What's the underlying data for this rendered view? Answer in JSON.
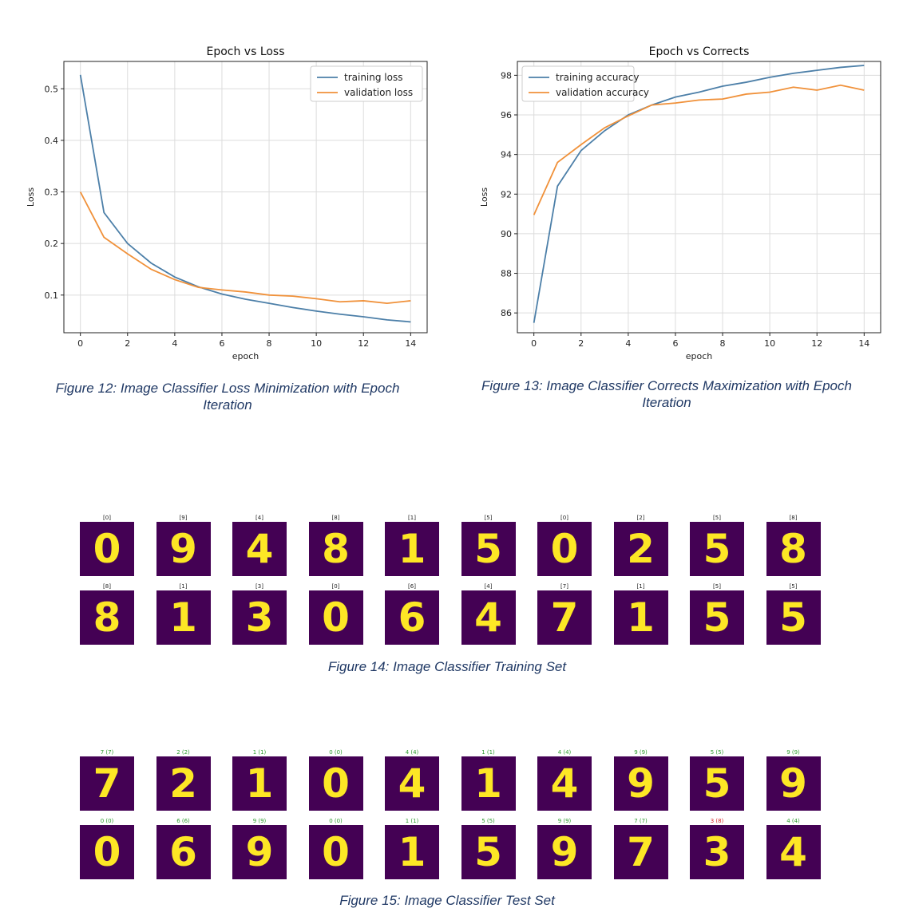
{
  "chart_data": [
    {
      "type": "line",
      "title": "Epoch vs Loss",
      "xlabel": "epoch",
      "ylabel": "Loss",
      "xlim": [
        -0.7,
        14.7
      ],
      "ylim": [
        0.027,
        0.553
      ],
      "xticks": [
        0,
        2,
        4,
        6,
        8,
        10,
        12,
        14
      ],
      "yticks": [
        0.1,
        0.2,
        0.3,
        0.4,
        0.5
      ],
      "ytick_labels": [
        "0.1",
        "0.2",
        "0.3",
        "0.4",
        "0.5"
      ],
      "grid": true,
      "legend": "top-right",
      "x": [
        0,
        1,
        2,
        3,
        4,
        5,
        6,
        7,
        8,
        9,
        10,
        11,
        12,
        13,
        14
      ],
      "series": [
        {
          "name": "training loss",
          "color": "#4c7fa8",
          "values": [
            0.527,
            0.26,
            0.2,
            0.162,
            0.135,
            0.116,
            0.102,
            0.092,
            0.084,
            0.076,
            0.069,
            0.063,
            0.058,
            0.052,
            0.048
          ]
        },
        {
          "name": "validation loss",
          "color": "#f0913a",
          "values": [
            0.3,
            0.212,
            0.18,
            0.15,
            0.13,
            0.115,
            0.11,
            0.106,
            0.1,
            0.098,
            0.093,
            0.087,
            0.089,
            0.084,
            0.089
          ]
        }
      ]
    },
    {
      "type": "line",
      "title": "Epoch vs Corrects",
      "xlabel": "epoch",
      "ylabel": "Loss",
      "xlim": [
        -0.7,
        14.7
      ],
      "ylim": [
        85.0,
        98.7
      ],
      "xticks": [
        0,
        2,
        4,
        6,
        8,
        10,
        12,
        14
      ],
      "yticks": [
        86,
        88,
        90,
        92,
        94,
        96,
        98
      ],
      "ytick_labels": [
        "86",
        "88",
        "90",
        "92",
        "94",
        "96",
        "98"
      ],
      "grid": true,
      "legend": "top-left",
      "x": [
        0,
        1,
        2,
        3,
        4,
        5,
        6,
        7,
        8,
        9,
        10,
        11,
        12,
        13,
        14
      ],
      "series": [
        {
          "name": "training accuracy",
          "color": "#4c7fa8",
          "values": [
            85.5,
            92.4,
            94.2,
            95.2,
            96.0,
            96.5,
            96.9,
            97.15,
            97.45,
            97.65,
            97.9,
            98.1,
            98.25,
            98.4,
            98.5
          ]
        },
        {
          "name": "validation accuracy",
          "color": "#f0913a",
          "values": [
            90.95,
            93.6,
            94.5,
            95.35,
            95.95,
            96.5,
            96.6,
            96.75,
            96.8,
            97.05,
            97.15,
            97.4,
            97.25,
            97.5,
            97.25
          ]
        }
      ]
    }
  ],
  "captions": {
    "fig12": "Figure 12: Image Classifier Loss Minimization with Epoch Iteration",
    "fig13": "Figure 13: Image Classifier Corrects Maximization with Epoch Iteration",
    "fig14": "Figure 14: Image Classifier Training Set",
    "fig15": "Figure 15: Image Classifier Test Set"
  },
  "training_set": {
    "label_color": "#222222",
    "rows": [
      [
        {
          "label": "[0]",
          "digit": "0"
        },
        {
          "label": "[9]",
          "digit": "9"
        },
        {
          "label": "[4]",
          "digit": "4"
        },
        {
          "label": "[8]",
          "digit": "8"
        },
        {
          "label": "[1]",
          "digit": "1"
        },
        {
          "label": "[5]",
          "digit": "5"
        },
        {
          "label": "[0]",
          "digit": "0"
        },
        {
          "label": "[2]",
          "digit": "2"
        },
        {
          "label": "[5]",
          "digit": "5"
        },
        {
          "label": "[8]",
          "digit": "8"
        }
      ],
      [
        {
          "label": "[8]",
          "digit": "8"
        },
        {
          "label": "[1]",
          "digit": "1"
        },
        {
          "label": "[3]",
          "digit": "3"
        },
        {
          "label": "[0]",
          "digit": "0"
        },
        {
          "label": "[6]",
          "digit": "6"
        },
        {
          "label": "[4]",
          "digit": "4"
        },
        {
          "label": "[7]",
          "digit": "7"
        },
        {
          "label": "[1]",
          "digit": "1"
        },
        {
          "label": "[5]",
          "digit": "5"
        },
        {
          "label": "[5]",
          "digit": "5"
        }
      ]
    ]
  },
  "test_set": {
    "correct_color": "#2e9a2e",
    "wrong_color": "#d62728",
    "rows": [
      [
        {
          "label": "7 (7)",
          "digit": "7",
          "correct": true
        },
        {
          "label": "2 (2)",
          "digit": "2",
          "correct": true
        },
        {
          "label": "1 (1)",
          "digit": "1",
          "correct": true
        },
        {
          "label": "0 (0)",
          "digit": "0",
          "correct": true
        },
        {
          "label": "4 (4)",
          "digit": "4",
          "correct": true
        },
        {
          "label": "1 (1)",
          "digit": "1",
          "correct": true
        },
        {
          "label": "4 (4)",
          "digit": "4",
          "correct": true
        },
        {
          "label": "9 (9)",
          "digit": "9",
          "correct": true
        },
        {
          "label": "5 (5)",
          "digit": "5",
          "correct": true
        },
        {
          "label": "9 (9)",
          "digit": "9",
          "correct": true
        }
      ],
      [
        {
          "label": "0 (0)",
          "digit": "0",
          "correct": true
        },
        {
          "label": "6 (6)",
          "digit": "6",
          "correct": true
        },
        {
          "label": "9 (9)",
          "digit": "9",
          "correct": true
        },
        {
          "label": "0 (0)",
          "digit": "0",
          "correct": true
        },
        {
          "label": "1 (1)",
          "digit": "1",
          "correct": true
        },
        {
          "label": "5 (5)",
          "digit": "5",
          "correct": true
        },
        {
          "label": "9 (9)",
          "digit": "9",
          "correct": true
        },
        {
          "label": "7 (7)",
          "digit": "7",
          "correct": true
        },
        {
          "label": "3 (8)",
          "digit": "3",
          "correct": false
        },
        {
          "label": "4 (4)",
          "digit": "4",
          "correct": true
        }
      ]
    ]
  }
}
